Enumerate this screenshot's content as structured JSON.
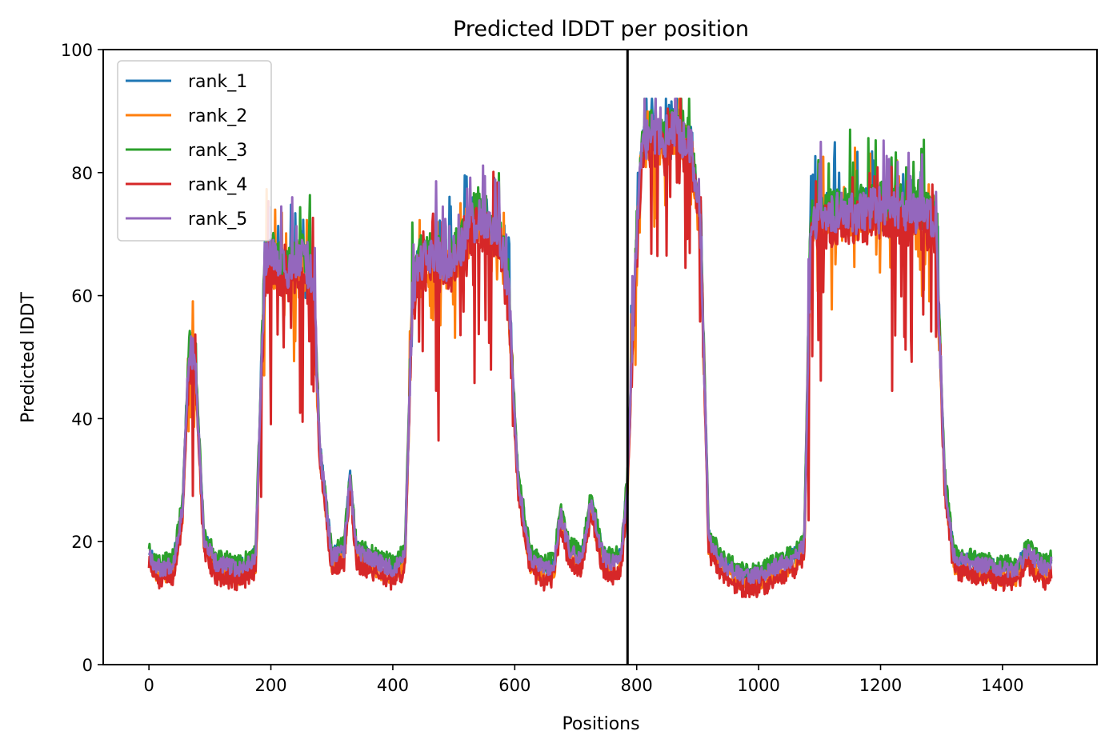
{
  "chart_data": {
    "type": "line",
    "title": "Predicted lDDT per position",
    "xlabel": "Positions",
    "ylabel": "Predicted lDDT",
    "xlim": [
      -75,
      1555
    ],
    "ylim": [
      0,
      100
    ],
    "xticks": [
      0,
      200,
      400,
      600,
      800,
      1000,
      1200,
      1400
    ],
    "xtick_labels": [
      "0",
      "200",
      "400",
      "600",
      "800",
      "1000",
      "1200",
      "1400"
    ],
    "yticks": [
      0,
      20,
      40,
      60,
      80,
      100
    ],
    "ytick_labels": [
      "0",
      "20",
      "40",
      "60",
      "80",
      "100"
    ],
    "vline_x": 785,
    "vline_color": "#000000",
    "legend_position": "upper-left",
    "grid": false,
    "anchors": {
      "x": [
        0,
        8,
        20,
        40,
        55,
        65,
        75,
        90,
        110,
        150,
        175,
        190,
        200,
        215,
        230,
        250,
        270,
        280,
        300,
        320,
        330,
        340,
        360,
        380,
        400,
        420,
        432,
        445,
        465,
        490,
        515,
        530,
        550,
        575,
        590,
        605,
        625,
        650,
        665,
        675,
        690,
        710,
        725,
        745,
        760,
        775,
        785,
        795,
        808,
        825,
        845,
        855,
        870,
        890,
        905,
        918,
        940,
        970,
        1000,
        1040,
        1060,
        1075,
        1085,
        1100,
        1150,
        1200,
        1250,
        1290,
        1305,
        1320,
        1350,
        1400,
        1425,
        1440,
        1470,
        1480
      ],
      "y": [
        18,
        16,
        15,
        16,
        25,
        50,
        50,
        20,
        16,
        15,
        17,
        65,
        66,
        64,
        64,
        66,
        62,
        35,
        17,
        18,
        30,
        18,
        17,
        16,
        15,
        17,
        60,
        65,
        66,
        65,
        68,
        72,
        72,
        70,
        60,
        30,
        17,
        15,
        16,
        24,
        18,
        17,
        26,
        17,
        16,
        17,
        30,
        58,
        84,
        86,
        84,
        88,
        86,
        84,
        70,
        20,
        16,
        14,
        14,
        16,
        17,
        19,
        70,
        73,
        73,
        74,
        73,
        72,
        30,
        17,
        16,
        15,
        15,
        18,
        15,
        16
      ]
    },
    "series": [
      {
        "name": "rank_1",
        "color": "#1f77b4",
        "seed": 11,
        "offset": 0.8,
        "dip": 0.15,
        "noise": 3.0
      },
      {
        "name": "rank_2",
        "color": "#ff7f0e",
        "seed": 23,
        "offset": -0.8,
        "dip": 0.45,
        "noise": 3.2
      },
      {
        "name": "rank_3",
        "color": "#2ca02c",
        "seed": 37,
        "offset": 1.5,
        "dip": 0.05,
        "noise": 3.0
      },
      {
        "name": "rank_4",
        "color": "#d62728",
        "seed": 51,
        "offset": -1.5,
        "dip": 0.95,
        "noise": 3.6
      },
      {
        "name": "rank_5",
        "color": "#9467bd",
        "seed": 67,
        "offset": 0.5,
        "dip": 0.05,
        "noise": 3.0
      }
    ]
  }
}
